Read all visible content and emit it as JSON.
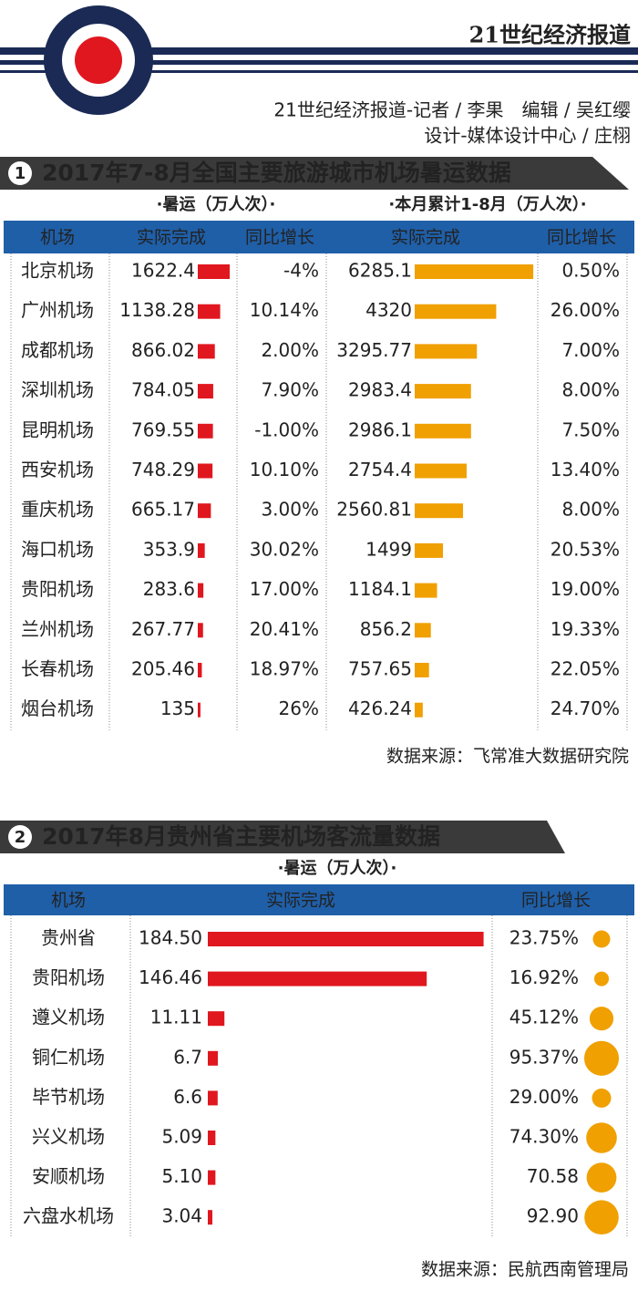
{
  "header": {
    "brand": "21世纪经济报道",
    "credits": [
      "21世纪经济报道-记者 / 李果　编辑 / 吴红缨",
      "设计-媒体设计中心 / 庄栩"
    ]
  },
  "chart_data": [
    {
      "type": "table-bar",
      "badge": "1",
      "title": "2017年7-8月全国主要旅游城市机场暑运数据",
      "groups": [
        "·暑运（万人次）·",
        "·本月累计1-8月（万人次）·"
      ],
      "columns": [
        "机场",
        "实际完成",
        "同比增长",
        "实际完成",
        "同比增长"
      ],
      "categories": [
        "北京机场",
        "广州机场",
        "成都机场",
        "深圳机场",
        "昆明机场",
        "西安机场",
        "重庆机场",
        "海口机场",
        "贵阳机场",
        "兰州机场",
        "长春机场",
        "烟台机场"
      ],
      "summer": {
        "color": "#e0171f",
        "values": [
          1622.4,
          1138.28,
          866.02,
          784.05,
          769.55,
          748.29,
          665.17,
          353.9,
          283.6,
          267.77,
          205.46,
          135
        ],
        "growth": [
          -4,
          10.14,
          2.0,
          7.9,
          -1.0,
          10.1,
          3.0,
          30.02,
          17.0,
          20.41,
          18.97,
          26
        ],
        "growth_labels": [
          "-4%",
          "10.14%",
          "2.00%",
          "7.90%",
          "-1.00%",
          "10.10%",
          "3.00%",
          "30.02%",
          "17.00%",
          "20.41%",
          "18.97%",
          "26%"
        ]
      },
      "cumulative": {
        "color": "#f0a000",
        "values": [
          6285.1,
          4320,
          3295.77,
          2983.4,
          2986.1,
          2754.4,
          2560.81,
          1499,
          1184.1,
          856.2,
          757.65,
          426.24
        ],
        "growth": [
          0.5,
          26.0,
          7.0,
          8.0,
          7.5,
          13.4,
          8.0,
          20.53,
          19.0,
          19.33,
          22.05,
          24.7
        ],
        "growth_labels": [
          "0.50%",
          "26.00%",
          "7.00%",
          "8.00%",
          "7.50%",
          "13.40%",
          "8.00%",
          "20.53%",
          "19.00%",
          "19.33%",
          "22.05%",
          "24.70%"
        ]
      },
      "source": "数据来源：飞常准大数据研究院"
    },
    {
      "type": "table-bar-bubble",
      "badge": "2",
      "title": "2017年8月贵州省主要机场客流量数据",
      "groups": [
        "·暑运（万人次）·"
      ],
      "columns": [
        "机场",
        "实际完成",
        "同比增长"
      ],
      "categories": [
        "贵州省",
        "贵阳机场",
        "遵义机场",
        "铜仁机场",
        "毕节机场",
        "兴义机场",
        "安顺机场",
        "六盘水机场"
      ],
      "summer": {
        "color": "#e0171f",
        "values": [
          184.5,
          146.46,
          11.11,
          6.7,
          6.6,
          5.09,
          5.1,
          3.04
        ],
        "value_labels": [
          "184.50",
          "146.46",
          "11.11",
          "6.7",
          "6.6",
          "5.09",
          "5.10",
          "3.04"
        ],
        "growth": [
          23.75,
          16.92,
          45.12,
          95.37,
          29.0,
          74.3,
          70.58,
          92.9
        ],
        "growth_labels": [
          "23.75%",
          "16.92%",
          "45.12%",
          "95.37%",
          "29.00%",
          "74.30%",
          "70.58",
          "92.90"
        ],
        "bubble_color": "#f0a000"
      },
      "source": "数据来源：民航西南管理局"
    }
  ]
}
